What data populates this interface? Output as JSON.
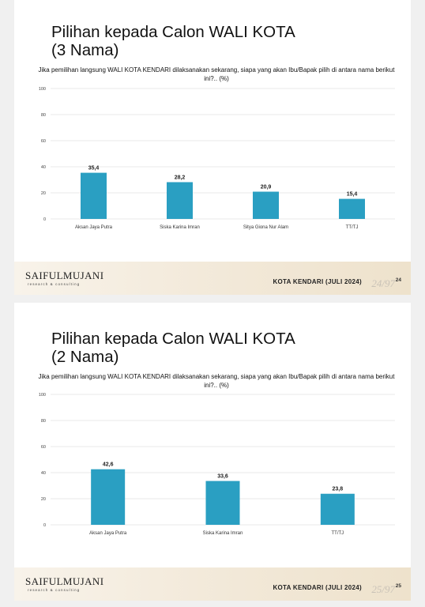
{
  "slides": [
    {
      "title_line1": "Pilihan kepada Calon WALI KOTA",
      "title_line2": "(3 Nama)",
      "question": "Jika pemilihan langsung WALI KOTA KENDARI dilaksanakan sekarang, siapa yang akan Ibu/Bapak pilih di antara nama berikut ini?.. (%)",
      "footer": {
        "logo": "SAIFULMUJANI",
        "logo_sub": "research & consulting",
        "region": "KOTA KENDARI (JULI 2024)",
        "handwritten_page": "24/97",
        "page_number": "24"
      }
    },
    {
      "title_line1": "Pilihan kepada Calon WALI KOTA",
      "title_line2": "(2 Nama)",
      "question": "Jika pemilihan langsung WALI KOTA KENDARI dilaksanakan sekarang, siapa yang akan Ibu/Bapak pilih di antara nama berikut ini?.. (%)",
      "footer": {
        "logo": "SAIFULMUJANI",
        "logo_sub": "research & consulting",
        "region": "KOTA KENDARI (JULI 2024)",
        "handwritten_page": "25/97",
        "page_number": "25"
      }
    }
  ],
  "colors": {
    "bar": "#2a9fc2",
    "grid": "#e2e2e2",
    "text": "#222222"
  },
  "chart_data": [
    {
      "type": "bar",
      "categories": [
        "Aksan Jaya Putra",
        "Siska Karina Imran",
        "Sitya Giona Nur Alam",
        "TT/TJ"
      ],
      "values": [
        35.4,
        28.2,
        20.9,
        15.4
      ],
      "value_labels": [
        "35,4",
        "28,2",
        "20,9",
        "15,4"
      ],
      "y_ticks": [
        0,
        20,
        40,
        60,
        80,
        100
      ],
      "ylim": [
        0,
        100
      ],
      "grid": true
    },
    {
      "type": "bar",
      "categories": [
        "Aksan Jaya Putra",
        "Siska Karina Imran",
        "TT/TJ"
      ],
      "values": [
        42.6,
        33.6,
        23.8
      ],
      "value_labels": [
        "42,6",
        "33,6",
        "23,8"
      ],
      "y_ticks": [
        0,
        20,
        40,
        60,
        80,
        100
      ],
      "ylim": [
        0,
        100
      ],
      "grid": true
    }
  ]
}
